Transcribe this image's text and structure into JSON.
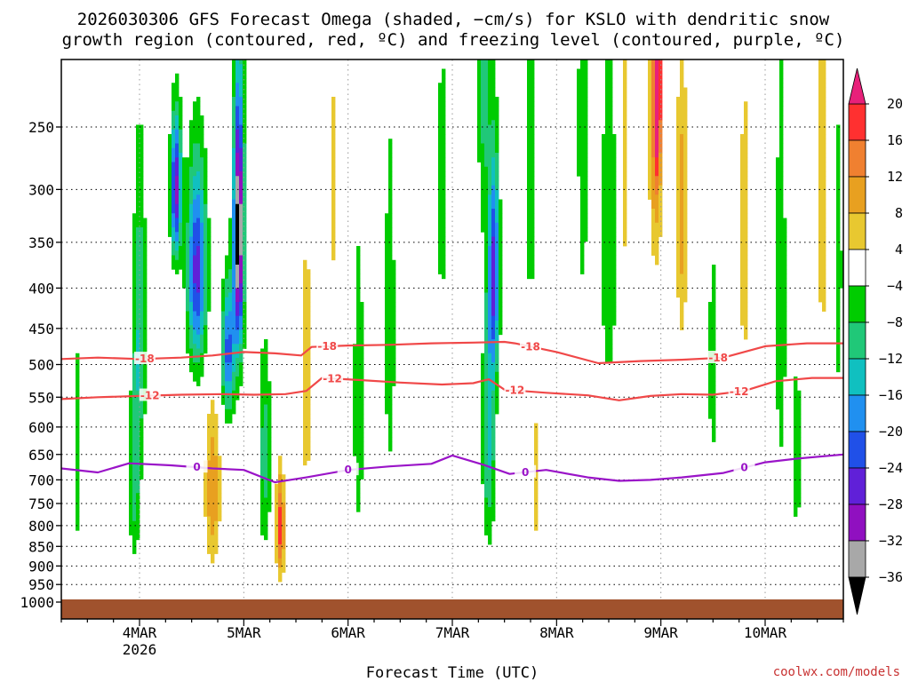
{
  "chart_data": {
    "type": "heatmap",
    "title_line1": "2026030306 GFS Forecast Omega (shaded, −cm/s) for KSLO with dendritic snow",
    "title_line2": "growth region (contoured, red, ºC) and freezing level (contoured, purple, ºC)",
    "xlabel": "Forecast Time (UTC)",
    "credit": "coolwx.com/models",
    "x_ticks": [
      {
        "label": "4MAR",
        "day": 4,
        "sub": "2026"
      },
      {
        "label": "5MAR",
        "day": 5
      },
      {
        "label": "6MAR",
        "day": 6
      },
      {
        "label": "7MAR",
        "day": 7
      },
      {
        "label": "8MAR",
        "day": 8
      },
      {
        "label": "9MAR",
        "day": 9
      },
      {
        "label": "10MAR",
        "day": 10
      }
    ],
    "xlim": [
      3.25,
      10.75
    ],
    "y_axis": {
      "scale": "log-pressure",
      "reversed": true,
      "ylim": [
        1000,
        200
      ]
    },
    "y_ticks": [
      {
        "label": "250",
        "value": 250
      },
      {
        "label": "300",
        "value": 300
      },
      {
        "label": "350",
        "value": 350
      },
      {
        "label": "400",
        "value": 400
      },
      {
        "label": "450",
        "value": 450
      },
      {
        "label": "500",
        "value": 500
      },
      {
        "label": "550",
        "value": 550
      },
      {
        "label": "600",
        "value": 600
      },
      {
        "label": "650",
        "value": 650
      },
      {
        "label": "700",
        "value": 700
      },
      {
        "label": "750",
        "value": 750
      },
      {
        "label": "800",
        "value": 800
      },
      {
        "label": "850",
        "value": 850
      },
      {
        "label": "900",
        "value": 900
      },
      {
        "label": "950",
        "value": 950
      },
      {
        "label": "1000",
        "value": 1000
      }
    ],
    "grid": true,
    "surface_color": "#a0522d",
    "colorbar": {
      "ticks": [
        {
          "label": "20",
          "value": 20
        },
        {
          "label": "16",
          "value": 16
        },
        {
          "label": "12",
          "value": 12
        },
        {
          "label": "8",
          "value": 8
        },
        {
          "label": "4",
          "value": 4
        },
        {
          "label": "−4",
          "value": -4
        },
        {
          "label": "−8",
          "value": -8
        },
        {
          "label": "−12",
          "value": -12
        },
        {
          "label": "−16",
          "value": -16
        },
        {
          "label": "−20",
          "value": -20
        },
        {
          "label": "−24",
          "value": -24
        },
        {
          "label": "−28",
          "value": -28
        },
        {
          "label": "−32",
          "value": -32
        },
        {
          "label": "−36",
          "value": -36
        }
      ],
      "bins": [
        {
          "from": 16,
          "to": 20,
          "color": "#ff3030"
        },
        {
          "from": 12,
          "to": 16,
          "color": "#f08030"
        },
        {
          "from": 8,
          "to": 12,
          "color": "#e8a020"
        },
        {
          "from": 4,
          "to": 8,
          "color": "#e8c830"
        },
        {
          "from": -4,
          "to": 4,
          "color": "#ffffff"
        },
        {
          "from": -8,
          "to": -4,
          "color": "#00cc00"
        },
        {
          "from": -12,
          "to": -8,
          "color": "#20c878"
        },
        {
          "from": -16,
          "to": -12,
          "color": "#10c0c0"
        },
        {
          "from": -20,
          "to": -16,
          "color": "#2090f0"
        },
        {
          "from": -24,
          "to": -20,
          "color": "#2050e8"
        },
        {
          "from": -28,
          "to": -24,
          "color": "#6020d8"
        },
        {
          "from": -32,
          "to": -28,
          "color": "#9010c0"
        },
        {
          "from": -36,
          "to": -32,
          "color": "#a8a8a8"
        }
      ],
      "over_color": "#e8207a",
      "under_color": "#000000"
    },
    "series": [
      {
        "name": "-18",
        "color": "#f04848",
        "points": [
          [
            3.25,
            492
          ],
          [
            3.6,
            490
          ],
          [
            4.0,
            492
          ],
          [
            4.4,
            490
          ],
          [
            4.7,
            487
          ],
          [
            5.0,
            482
          ],
          [
            5.3,
            484
          ],
          [
            5.55,
            487
          ],
          [
            5.65,
            475
          ],
          [
            6.0,
            473
          ],
          [
            6.4,
            472
          ],
          [
            6.8,
            470
          ],
          [
            7.2,
            469
          ],
          [
            7.5,
            468
          ],
          [
            7.6,
            470
          ],
          [
            8.0,
            482
          ],
          [
            8.4,
            498
          ],
          [
            8.8,
            495
          ],
          [
            9.2,
            493
          ],
          [
            9.6,
            490
          ],
          [
            10.0,
            474
          ],
          [
            10.4,
            470
          ],
          [
            10.75,
            470
          ]
        ],
        "labels": [
          [
            4.05,
            -18
          ],
          [
            5.8,
            -18
          ],
          [
            7.75,
            -18
          ],
          [
            9.55,
            -18
          ]
        ]
      },
      {
        "name": "-12",
        "color": "#f04848",
        "points": [
          [
            3.25,
            553
          ],
          [
            3.6,
            550
          ],
          [
            4.0,
            548
          ],
          [
            4.4,
            546
          ],
          [
            4.8,
            545
          ],
          [
            5.1,
            546
          ],
          [
            5.4,
            545
          ],
          [
            5.6,
            540
          ],
          [
            5.75,
            520
          ],
          [
            6.1,
            523
          ],
          [
            6.5,
            527
          ],
          [
            6.9,
            530
          ],
          [
            7.2,
            528
          ],
          [
            7.35,
            522
          ],
          [
            7.5,
            538
          ],
          [
            7.9,
            543
          ],
          [
            8.3,
            547
          ],
          [
            8.6,
            555
          ],
          [
            8.9,
            548
          ],
          [
            9.2,
            545
          ],
          [
            9.5,
            546
          ],
          [
            9.8,
            540
          ],
          [
            10.1,
            525
          ],
          [
            10.45,
            520
          ],
          [
            10.75,
            520
          ]
        ],
        "labels": [
          [
            4.1,
            -12
          ],
          [
            5.85,
            -12
          ],
          [
            7.6,
            -12
          ],
          [
            9.75,
            -12
          ]
        ]
      },
      {
        "name": "0",
        "color": "#9a14c8",
        "points": [
          [
            3.25,
            677
          ],
          [
            3.6,
            685
          ],
          [
            3.9,
            667
          ],
          [
            4.3,
            671
          ],
          [
            4.7,
            677
          ],
          [
            5.0,
            680
          ],
          [
            5.3,
            705
          ],
          [
            5.6,
            695
          ],
          [
            6.0,
            680
          ],
          [
            6.4,
            673
          ],
          [
            6.8,
            668
          ],
          [
            7.0,
            652
          ],
          [
            7.3,
            670
          ],
          [
            7.55,
            688
          ],
          [
            7.9,
            680
          ],
          [
            8.3,
            695
          ],
          [
            8.6,
            702
          ],
          [
            8.9,
            700
          ],
          [
            9.2,
            695
          ],
          [
            9.6,
            686
          ],
          [
            10.0,
            665
          ],
          [
            10.3,
            658
          ],
          [
            10.75,
            650
          ]
        ],
        "labels": [
          [
            4.55,
            0
          ],
          [
            6.0,
            0
          ],
          [
            7.7,
            0
          ],
          [
            9.8,
            0
          ]
        ]
      }
    ]
  }
}
